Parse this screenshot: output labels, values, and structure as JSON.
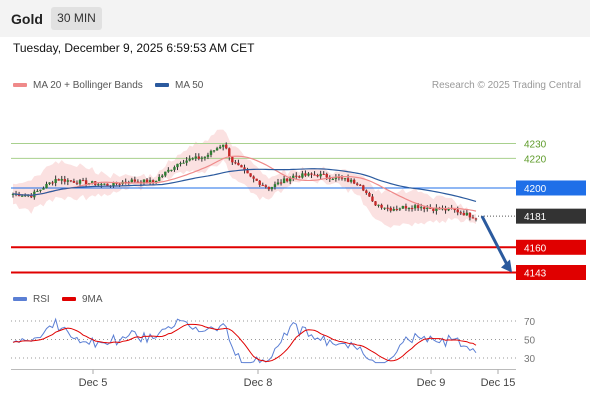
{
  "header": {
    "symbol": "Gold",
    "timeframe": "30 MIN"
  },
  "datetime": "Tuesday, December 9, 2025 6:59:53 AM CET",
  "legend": {
    "ma20": "MA 20 + Bollinger Bands",
    "ma50": "MA 50",
    "ma20_color": "#ef8a8a",
    "ma50_color": "#2b5a9e"
  },
  "copyright": "Research © 2025 Trading Central",
  "rsi_legend": {
    "rsi": "RSI",
    "ma": "9MA",
    "rsi_color": "#5b7fd4",
    "ma_color": "#e00000"
  },
  "chart_data": [
    {
      "type": "line",
      "panel": "price",
      "x_ticks": [
        "Dec 5",
        "Dec 8",
        "Dec 9",
        "Dec 15"
      ],
      "ylim": [
        4130,
        4250
      ],
      "levels": [
        {
          "value": 4230,
          "label": "4230",
          "color": "#a8d08d",
          "kind": "resistance"
        },
        {
          "value": 4220,
          "label": "4220",
          "color": "#a8d08d",
          "kind": "resistance"
        },
        {
          "value": 4200,
          "label": "4200",
          "color": "#1f6fe8",
          "kind": "pivot"
        },
        {
          "value": 4181,
          "label": "4181",
          "color": "#333333",
          "kind": "last"
        },
        {
          "value": 4160,
          "label": "4160",
          "color": "#e00000",
          "kind": "support"
        },
        {
          "value": 4143,
          "label": "4143",
          "color": "#e00000",
          "kind": "support"
        }
      ],
      "series": [
        {
          "name": "MA 20 + Bollinger Bands",
          "color": "#ef8a8a"
        },
        {
          "name": "MA 50",
          "color": "#2b5a9e"
        }
      ]
    },
    {
      "type": "line",
      "panel": "rsi",
      "ylim": [
        20,
        80
      ],
      "y_ticks": [
        70,
        50,
        30
      ],
      "series": [
        {
          "name": "RSI",
          "color": "#5b7fd4"
        },
        {
          "name": "9MA",
          "color": "#e00000"
        }
      ]
    }
  ]
}
